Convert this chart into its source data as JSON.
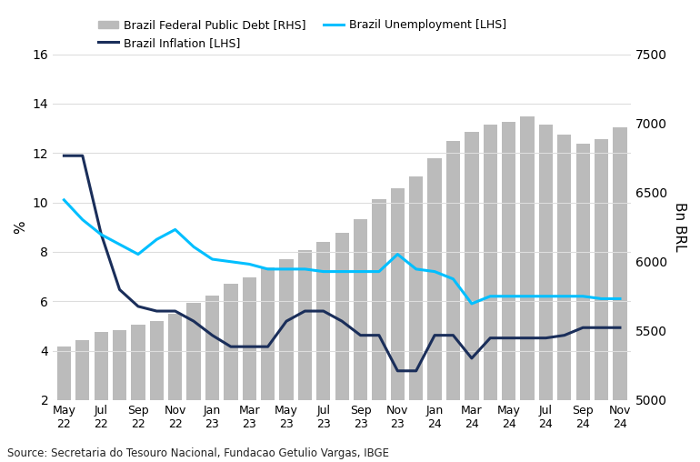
{
  "bar_rhs": [
    5385,
    5435,
    5490,
    5505,
    5545,
    5570,
    5625,
    5700,
    5755,
    5840,
    5885,
    5960,
    6020,
    6085,
    6140,
    6210,
    6310,
    6455,
    6530,
    6615,
    6750,
    6870,
    6940,
    6990,
    7010,
    7050,
    6990,
    6920,
    6855,
    6885,
    6970
  ],
  "inflation_lhs": [
    11.89,
    11.89,
    8.73,
    6.47,
    5.79,
    5.6,
    5.6,
    5.19,
    4.62,
    4.16,
    4.16,
    4.16,
    5.19,
    5.6,
    5.6,
    5.19,
    4.62,
    4.62,
    3.18,
    3.18,
    4.62,
    4.62,
    3.69,
    4.51,
    4.51,
    4.51,
    4.51,
    4.62,
    4.93,
    4.93,
    4.93
  ],
  "unemployment_lhs": [
    10.1,
    9.3,
    8.7,
    8.3,
    7.9,
    8.5,
    8.9,
    8.2,
    7.7,
    7.6,
    7.5,
    7.3,
    7.3,
    7.3,
    7.2,
    7.2,
    7.2,
    7.2,
    7.9,
    7.3,
    7.2,
    6.9,
    5.9,
    6.2,
    6.2,
    6.2,
    6.2,
    6.2,
    6.2,
    6.1,
    6.1
  ],
  "bar_color": "#bbbbbb",
  "inflation_color": "#1a2e5a",
  "unemployment_color": "#00bfff",
  "lhs_ylim": [
    2,
    16
  ],
  "rhs_ylim": [
    5000,
    7500
  ],
  "lhs_yticks": [
    2,
    4,
    6,
    8,
    10,
    12,
    14,
    16
  ],
  "rhs_yticks": [
    5000,
    5500,
    6000,
    6500,
    7000,
    7500
  ],
  "ylabel_left": "%",
  "ylabel_right": "Bn BRL",
  "source_text": "Source: Secretaria do Tesouro Nacional, Fundacao Getulio Vargas, IBGE",
  "legend_labels": [
    "Brazil Federal Public Debt [RHS]",
    "Brazil Inflation [LHS]",
    "Brazil Unemployment [LHS]"
  ],
  "background_color": "#ffffff"
}
